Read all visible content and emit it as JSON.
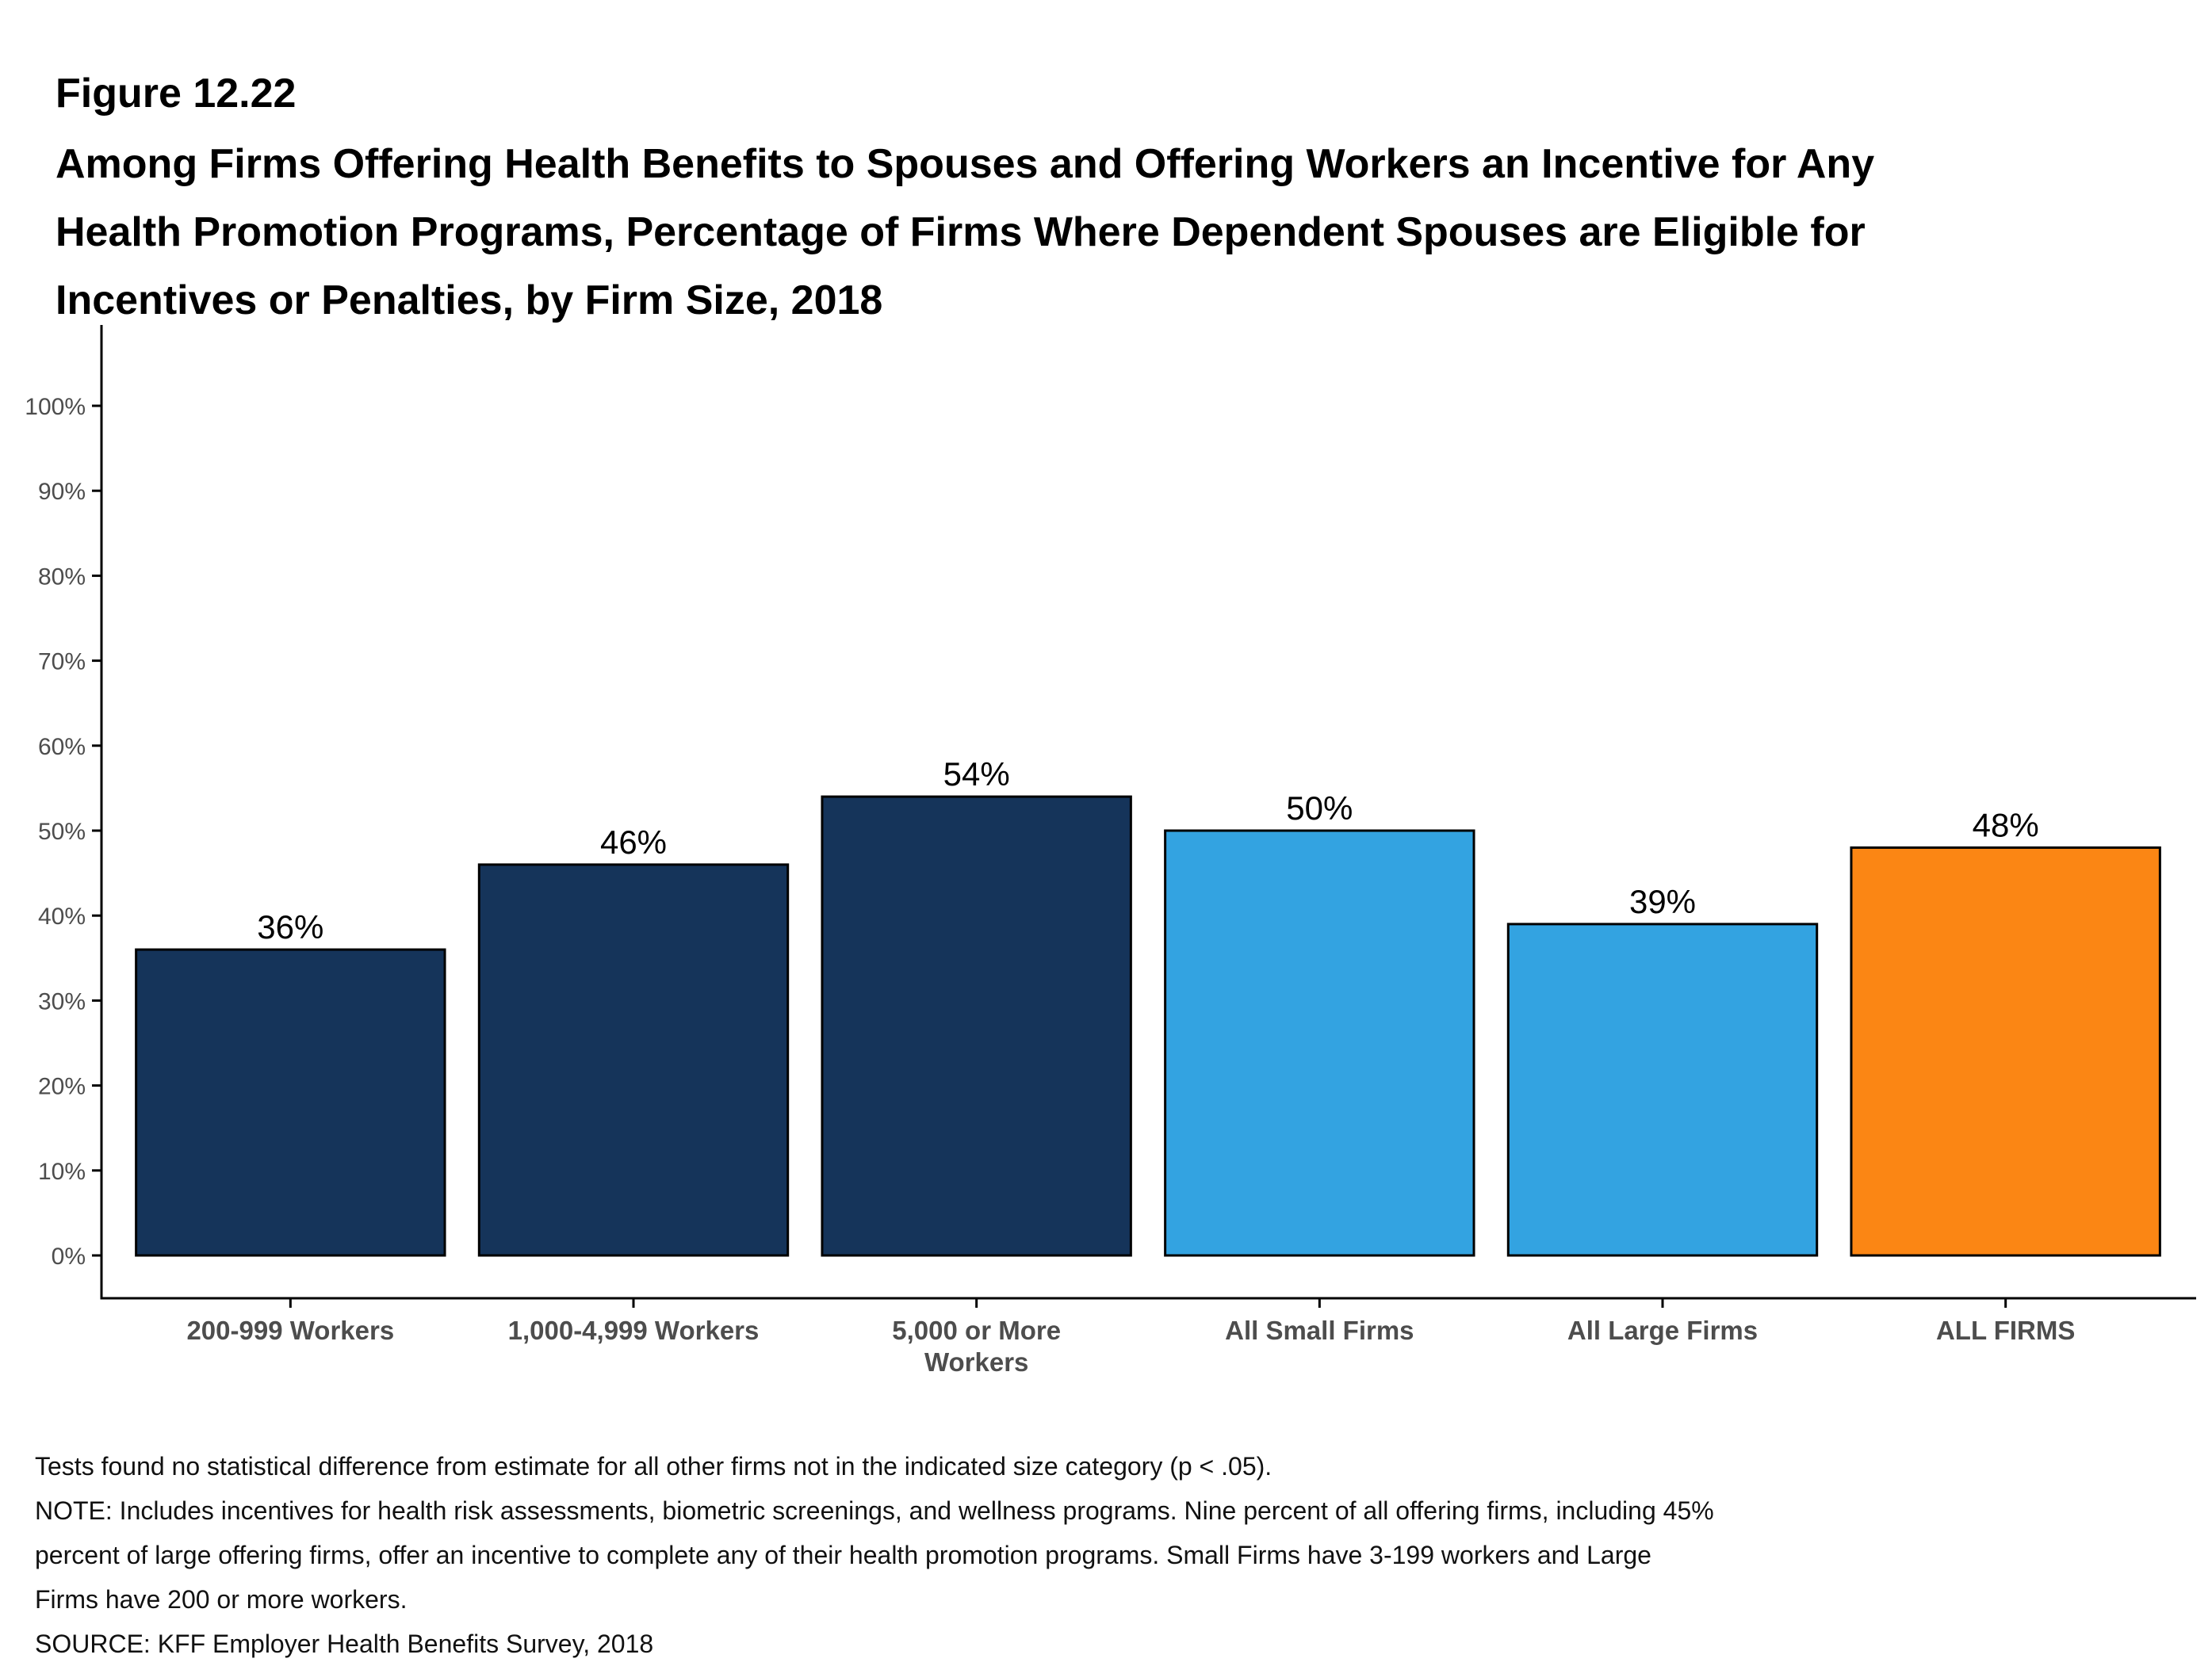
{
  "figure_label": "Figure 12.22",
  "title_lines": [
    "Among Firms Offering Health Benefits to Spouses and Offering Workers an Incentive for Any",
    "Health Promotion Programs, Percentage of Firms Where Dependent Spouses are Eligible for",
    "Incentives or Penalties, by Firm Size, 2018"
  ],
  "chart_data": {
    "type": "bar",
    "title": "Among Firms Offering Health Benefits to Spouses and Offering Workers an Incentive for Any Health Promotion Programs, Percentage of Firms Where Dependent Spouses are Eligible for Incentives or Penalties, by Firm Size, 2018",
    "categories": [
      [
        "200-999 Workers"
      ],
      [
        "1,000-4,999 Workers"
      ],
      [
        "5,000 or More",
        "Workers"
      ],
      [
        "All Small Firms"
      ],
      [
        "All Large Firms"
      ],
      [
        "ALL FIRMS"
      ]
    ],
    "values": [
      36,
      46,
      54,
      50,
      39,
      48
    ],
    "data_labels": [
      "36%",
      "46%",
      "54%",
      "50%",
      "39%",
      "48%"
    ],
    "bar_colors": [
      "#15345a",
      "#15345a",
      "#15345a",
      "#33a3e1",
      "#33a3e1",
      "#fb8614"
    ],
    "ylim": [
      0,
      100
    ],
    "yticks": [
      0,
      10,
      20,
      30,
      40,
      50,
      60,
      70,
      80,
      90,
      100
    ],
    "ytick_labels": [
      "0%",
      "10%",
      "20%",
      "30%",
      "40%",
      "50%",
      "60%",
      "70%",
      "80%",
      "90%",
      "100%"
    ],
    "xlabel": "",
    "ylabel": "",
    "grid": false,
    "legend": "none"
  },
  "notes": [
    "Tests found no statistical difference from estimate for all other firms not in the indicated size category (p < .05).",
    "NOTE: Includes incentives for health risk assessments, biometric screenings, and wellness programs. Nine percent of all offering firms, including 45%",
    "percent of large offering firms, offer an incentive to complete any of their health promotion programs. Small Firms have 3-199 workers and Large",
    "Firms have 200 or more workers.",
    "SOURCE: KFF Employer Health Benefits Survey, 2018"
  ]
}
